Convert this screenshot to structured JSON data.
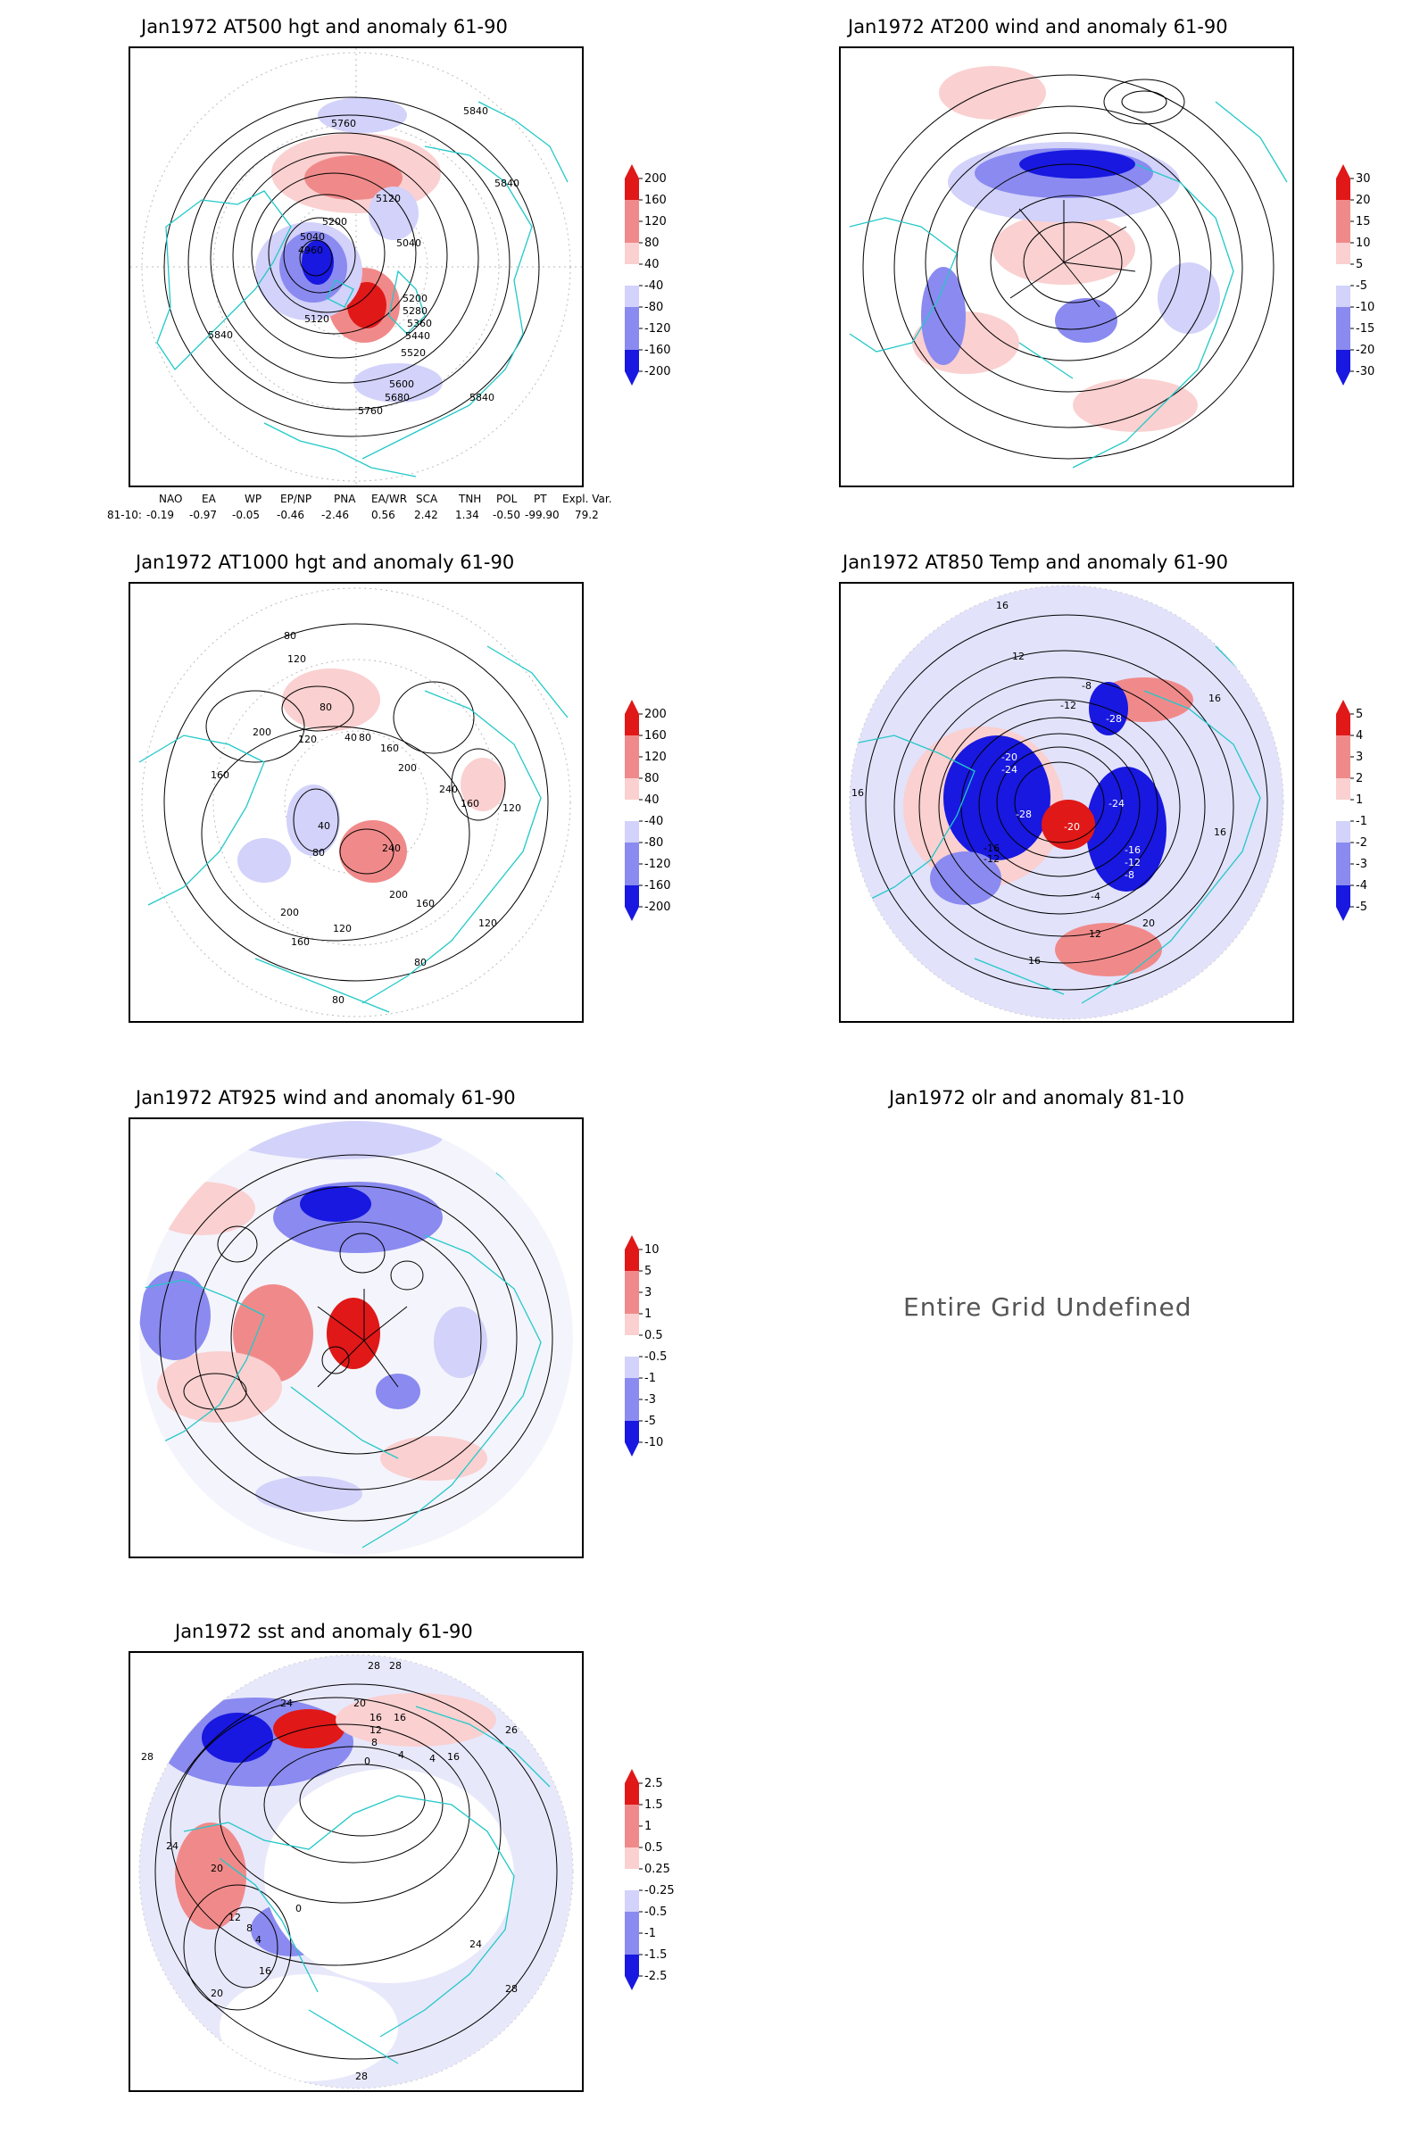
{
  "colors": {
    "frame": "#000000",
    "coast": "#22c8c8",
    "contour": "#000000",
    "anom_pos_strong": "#e01818",
    "anom_pos_mid": "#f08a8a",
    "anom_pos_light": "#fad0d0",
    "anom_neg_light": "#d2d2fa",
    "anom_neg_mid": "#8a8af0",
    "anom_neg_strong": "#1818e0"
  },
  "panels": [
    {
      "id": "at500",
      "title": "Jan1972 AT500 hgt and anomaly 61-90",
      "contour_labels": [
        "5840",
        "5760",
        "5200",
        "5120",
        "5040",
        "4960",
        "5040",
        "5120",
        "5200",
        "5280",
        "5360",
        "5440",
        "5520",
        "5600",
        "5680",
        "5760",
        "5840",
        "5840",
        "5840"
      ],
      "colorbar": [
        "200",
        "160",
        "120",
        "80",
        "40",
        "-40",
        "-80",
        "-120",
        "-160",
        "-200"
      ]
    },
    {
      "id": "at200",
      "title": "Jan1972 AT200 wind and anomaly 61-90",
      "contour_labels": [],
      "colorbar": [
        "30",
        "20",
        "15",
        "10",
        "5",
        "-5",
        "-10",
        "-15",
        "-20",
        "-30"
      ]
    },
    {
      "id": "at1000",
      "title": "Jan1972 AT1000 hgt and anomaly 61-90",
      "contour_labels": [
        "80",
        "120",
        "80",
        "200",
        "160",
        "120",
        "40",
        "80",
        "160",
        "200",
        "240",
        "160",
        "120",
        "40",
        "80",
        "240",
        "200",
        "160",
        "120",
        "80",
        "120",
        "80",
        "200",
        "160"
      ],
      "colorbar": [
        "200",
        "160",
        "120",
        "80",
        "40",
        "-40",
        "-80",
        "-120",
        "-160",
        "-200"
      ]
    },
    {
      "id": "at850",
      "title": "Jan1972 AT850 Temp and anomaly 61-90",
      "contour_labels": [
        "16",
        "12",
        "16",
        "-12",
        "-8",
        "-20",
        "-24",
        "-28",
        "-24",
        "-28",
        "-20",
        "-16",
        "-12",
        "-16",
        "-12",
        "-8",
        "-4",
        "12",
        "16",
        "20",
        "16",
        "16"
      ],
      "colorbar": [
        "5",
        "4",
        "3",
        "2",
        "1",
        "-1",
        "-2",
        "-3",
        "-4",
        "-5"
      ]
    },
    {
      "id": "at925",
      "title": "Jan1972 AT925 wind and anomaly 61-90",
      "contour_labels": [],
      "colorbar": [
        "10",
        "5",
        "3",
        "1",
        "0.5",
        "-0.5",
        "-1",
        "-3",
        "-5",
        "-10"
      ]
    },
    {
      "id": "olr",
      "title": "Jan1972 olr and anomaly 81-10",
      "message": "Entire Grid Undefined"
    },
    {
      "id": "sst",
      "title": "Jan1972 sst and anomaly 61-90",
      "contour_labels": [
        "28",
        "28",
        "24",
        "20",
        "16",
        "16",
        "12",
        "8",
        "4",
        "0",
        "4",
        "16",
        "26",
        "28",
        "24",
        "20",
        "12",
        "8",
        "4",
        "0",
        "16",
        "20",
        "24",
        "28",
        "28"
      ],
      "colorbar": [
        "2.5",
        "1.5",
        "1",
        "0.5",
        "0.25",
        "-0.25",
        "-0.5",
        "-1",
        "-1.5",
        "-2.5"
      ]
    }
  ],
  "teleconnection": {
    "headers": [
      "NAO",
      "EA",
      "WP",
      "EP/NP",
      "PNA",
      "EA/WR",
      "SCA",
      "TNH",
      "POL",
      "PT",
      "Expl. Var."
    ],
    "row_label": "81-10:",
    "values": [
      "-0.19",
      "-0.97",
      "-0.05",
      "-0.46",
      "-2.46",
      "0.56",
      "2.42",
      "1.34",
      "-0.50",
      "-99.90",
      "79.2"
    ]
  }
}
